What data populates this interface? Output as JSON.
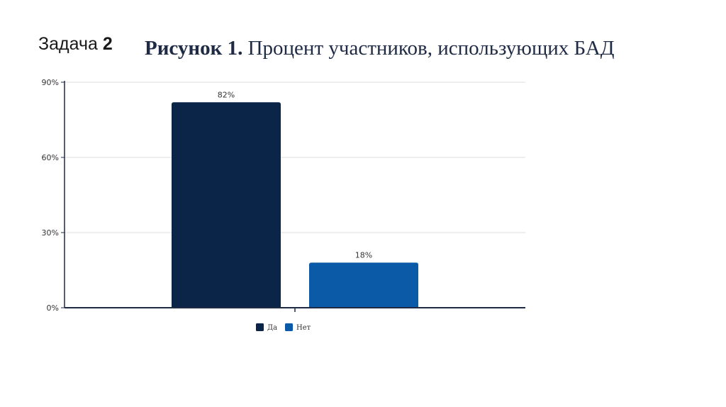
{
  "header": {
    "task_word": "Задача",
    "task_number": "2",
    "figure_prefix": "Рисунок 1.",
    "figure_title": "Процент участников, использующих БАД"
  },
  "colors": {
    "bar_yes": "#0a2548",
    "bar_no": "#0b5aa8",
    "axis": "#1f2a44",
    "grid": "#dddddd"
  },
  "chart_data": {
    "type": "bar",
    "title": "",
    "xlabel": "",
    "ylabel": "",
    "ylim": [
      0,
      90
    ],
    "yticks": [
      0,
      30,
      60,
      90
    ],
    "ytick_labels": [
      "0%",
      "30%",
      "60%",
      "90%"
    ],
    "grid": true,
    "legend_placement": "bottom",
    "series": [
      {
        "name": "Да",
        "values": [
          82
        ],
        "label": "82%",
        "color": "#0a2548"
      },
      {
        "name": "Нет",
        "values": [
          18
        ],
        "label": "18%",
        "color": "#0b5aa8"
      }
    ]
  }
}
